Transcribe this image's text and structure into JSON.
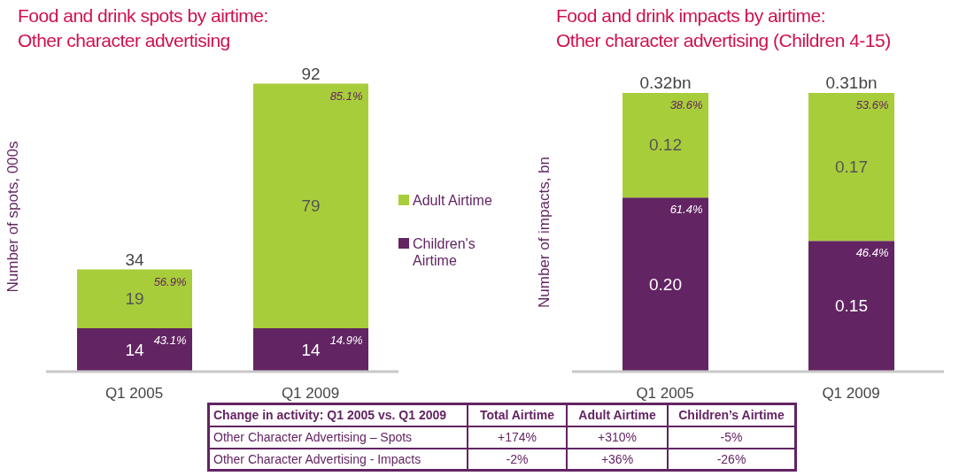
{
  "chart_data": [
    {
      "type": "bar",
      "title": "Food and drink spots by airtime:\nOther character advertising",
      "ylabel": "Number of spots, 000s",
      "categories": [
        "Q1 2005",
        "Q1 2009"
      ],
      "stacked": true,
      "legend": "right",
      "tick_labels": "x",
      "series": [
        {
          "name": "Children's Airtime",
          "color": "#622462",
          "values": [
            14,
            14
          ],
          "value_labels": [
            "14",
            "14"
          ]
        },
        {
          "name": "Adult Airtime",
          "color": "#a8cd3a",
          "values": [
            19,
            79
          ],
          "value_labels": [
            "19",
            "79"
          ]
        }
      ],
      "totals": [
        "34",
        "92"
      ],
      "annotations": [
        {
          "text": "43.1%",
          "x": "Q1 2005",
          "y": 14
        },
        {
          "text": "14.9%",
          "x": "Q1 2009",
          "y": 14
        },
        {
          "text": "56.9%",
          "x": "Q1 2005",
          "y": 33
        },
        {
          "text": "85.1%",
          "x": "Q1 2009",
          "y": 93
        }
      ]
    },
    {
      "type": "bar",
      "title": "Food and drink impacts by airtime:\nOther character advertising (Children 4-15)",
      "ylabel": "Number of impacts, bn",
      "categories": [
        "Q1 2005",
        "Q1 2009"
      ],
      "stacked": true,
      "tick_labels": "x",
      "series": [
        {
          "name": null,
          "color": "#622462",
          "values": [
            0.2,
            0.15
          ],
          "value_labels": [
            "0.20",
            "0.15"
          ]
        },
        {
          "name": null,
          "color": "#a8cd3a",
          "values": [
            0.12,
            0.17
          ],
          "value_labels": [
            "0.12",
            "0.17"
          ]
        }
      ],
      "totals": [
        "0.32bn",
        "0.31bn"
      ],
      "annotations": [
        {
          "text": "61.4%",
          "x": "Q1 2005",
          "y": 0.2
        },
        {
          "text": "46.4%",
          "x": "Q1 2009",
          "y": 0.15
        },
        {
          "text": "38.6%",
          "x": "Q1 2005",
          "y": 0.32
        },
        {
          "text": "53.6%",
          "x": "Q1 2009",
          "y": 0.32
        }
      ]
    },
    {
      "type": "other",
      "annotations": [
        "Change in activity: Q1 2005 vs. Q1 2009",
        "Total Airtime",
        "Adult Airtime",
        "Children’s Airtime",
        "Other Character Advertising – Spots",
        "+174%",
        "+310%",
        "-5%",
        "Other Character Advertising - Impacts",
        "-2%",
        "+36%",
        "-26%"
      ]
    }
  ]
}
